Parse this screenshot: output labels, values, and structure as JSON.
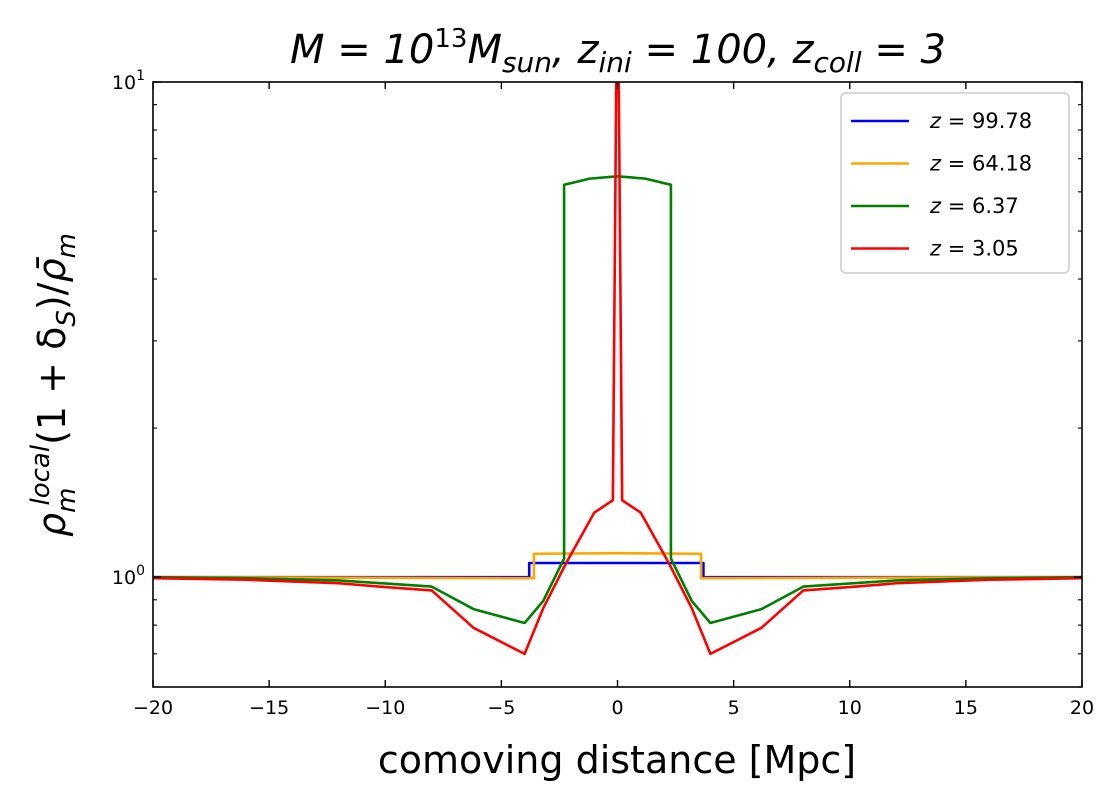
{
  "chart_data": {
    "type": "line",
    "title_parts": [
      "M = 10",
      "13",
      "M",
      "sun",
      ", z",
      "ini",
      " = 100, z",
      "coll",
      " = 3"
    ],
    "xlabel": "comoving distance [Mpc]",
    "ylabel_parts": [
      "ρ",
      "m",
      "local",
      "(1 + δ",
      "S",
      ")/",
      "ρ̄",
      "m"
    ],
    "xlim": [
      -20,
      20
    ],
    "ylim": [
      0.6,
      10
    ],
    "yscale": "log",
    "x_ticks": [
      -20,
      -15,
      -10,
      -5,
      0,
      5,
      10,
      15,
      20
    ],
    "x_tick_labels": [
      "−20",
      "−15",
      "−10",
      "−5",
      "0",
      "5",
      "10",
      "15",
      "20"
    ],
    "y_major_ticks": [
      1,
      10
    ],
    "y_major_labels": [
      {
        "base": "10",
        "exp": "0"
      },
      {
        "base": "10",
        "exp": "1"
      }
    ],
    "y_minor_ticks": [
      0.6,
      0.7,
      0.8,
      0.9,
      2,
      3,
      4,
      5,
      6,
      7,
      8,
      9
    ],
    "legend_position": "top-right",
    "series": [
      {
        "name": "z = 99.78",
        "label_prefix": "z = ",
        "label_value": "99.78",
        "color": "#0000ff",
        "x": [
          -20,
          -3.8,
          -3.8,
          3.7,
          3.7,
          20
        ],
        "y": [
          1.0,
          1.0,
          1.068,
          1.068,
          1.0,
          1.0
        ]
      },
      {
        "name": "z = 64.18",
        "label_prefix": "z = ",
        "label_value": "64.18",
        "color": "#ffa500",
        "x": [
          -20,
          -3.6,
          -3.6,
          0,
          3.6,
          3.6,
          20
        ],
        "y": [
          1.0,
          0.995,
          1.115,
          1.118,
          1.115,
          0.995,
          1.0
        ]
      },
      {
        "name": "z = 6.37",
        "label_prefix": "z = ",
        "label_value": "6.37",
        "color": "#008000",
        "x": [
          -20,
          -16,
          -12,
          -8,
          -6.2,
          -4,
          -3.2,
          -2.3,
          -2.3,
          -1.2,
          0,
          1.2,
          2.3,
          2.3,
          3.2,
          4,
          6.2,
          8,
          12,
          16,
          20
        ],
        "y": [
          1.0,
          0.995,
          0.985,
          0.957,
          0.862,
          0.808,
          0.895,
          1.09,
          6.2,
          6.38,
          6.45,
          6.38,
          6.2,
          1.09,
          0.895,
          0.808,
          0.862,
          0.957,
          0.985,
          0.995,
          1.0
        ],
        "label_placeholder": ""
      },
      {
        "name": "z = 3.05",
        "label_prefix": "z = ",
        "label_value": "3.05",
        "color": "#ff0000",
        "x": [
          -20,
          -16,
          -12,
          -10,
          -8,
          -6.2,
          -4,
          -3.2,
          -2.2,
          -1,
          -0.2,
          -0.05,
          0.05,
          0.2,
          1,
          2.2,
          3.2,
          4,
          6.2,
          8,
          10,
          12,
          16,
          20
        ],
        "y": [
          0.995,
          0.988,
          0.972,
          0.955,
          0.94,
          0.79,
          0.7,
          0.865,
          1.07,
          1.35,
          1.43,
          10.5,
          10.5,
          1.43,
          1.35,
          1.07,
          0.865,
          0.7,
          0.79,
          0.94,
          0.955,
          0.972,
          0.988,
          0.995
        ]
      }
    ]
  }
}
